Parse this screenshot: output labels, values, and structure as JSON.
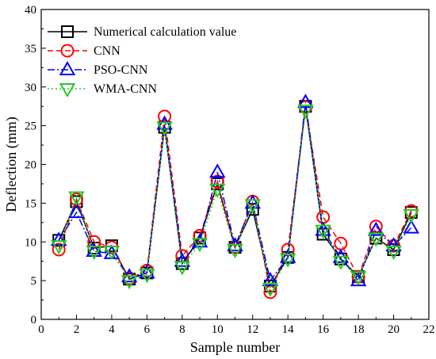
{
  "chart_data": {
    "type": "line",
    "xlabel": "Sample number",
    "ylabel": "Deflection (mm)",
    "xlim": [
      0,
      22
    ],
    "ylim": [
      0,
      40
    ],
    "x_ticks": [
      0,
      2,
      4,
      6,
      8,
      10,
      12,
      14,
      16,
      18,
      20,
      22
    ],
    "y_ticks": [
      0,
      5,
      10,
      15,
      20,
      25,
      30,
      35,
      40
    ],
    "grid": false,
    "legend_position": "top-left",
    "x": [
      1,
      2,
      3,
      4,
      5,
      6,
      7,
      8,
      9,
      10,
      11,
      12,
      13,
      14,
      15,
      16,
      17,
      18,
      19,
      20,
      21
    ],
    "series": [
      {
        "name": "Numerical calculation value",
        "color": "#000000",
        "marker": "square",
        "line": "solid",
        "values": [
          10.2,
          15.2,
          9.2,
          9.5,
          5.2,
          6.0,
          24.8,
          7.2,
          10.5,
          17.5,
          9.3,
          14.2,
          4.3,
          8.0,
          27.5,
          11.0,
          7.8,
          5.5,
          10.5,
          9.0,
          13.8
        ]
      },
      {
        "name": "CNN",
        "color": "#ff0000",
        "marker": "circle",
        "line": "dash",
        "values": [
          9.0,
          15.5,
          10.0,
          9.3,
          5.3,
          6.3,
          26.2,
          8.2,
          10.8,
          17.8,
          9.3,
          15.2,
          3.5,
          9.0,
          27.4,
          13.2,
          9.8,
          5.5,
          12.0,
          9.5,
          14.0
        ]
      },
      {
        "name": "PSO-CNN",
        "color": "#0000ff",
        "marker": "triangle-up",
        "line": "dashdot",
        "values": [
          10.2,
          13.8,
          8.8,
          8.5,
          5.5,
          6.0,
          25.2,
          7.5,
          10.0,
          19.0,
          9.5,
          15.0,
          5.0,
          8.0,
          28.0,
          11.5,
          8.0,
          5.0,
          11.5,
          9.5,
          11.8
        ]
      },
      {
        "name": "WMA-CNN",
        "color": "#22cc22",
        "marker": "triangle-down",
        "line": "dot",
        "values": [
          9.5,
          15.8,
          8.8,
          8.8,
          5.0,
          5.8,
          24.8,
          6.8,
          9.8,
          16.8,
          9.0,
          14.8,
          4.0,
          7.8,
          27.0,
          11.5,
          7.5,
          5.5,
          10.5,
          8.8,
          13.5
        ]
      }
    ]
  }
}
